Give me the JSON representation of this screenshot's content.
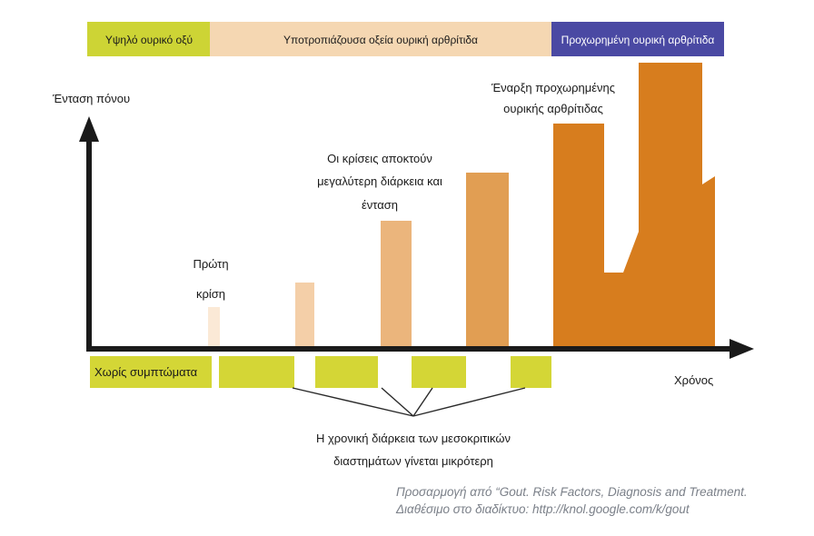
{
  "stages": [
    {
      "label": "Υψηλό ουρικό οξύ",
      "color": "#cdd435"
    },
    {
      "label": "Υποτροπιάζουσα οξεία ουρική αρθρίτιδα",
      "color": "#f5d7b2"
    },
    {
      "label": "Προχωρημένη ουρική αρθρίτιδα",
      "color": "#4a49a3"
    }
  ],
  "axes": {
    "y_label": "Ένταση πόνου",
    "x_label": "Χρόνος"
  },
  "annotations": {
    "first_attack": [
      "Πρώτη",
      "κρίση"
    ],
    "longer_attacks": [
      "Οι κρίσεις αποκτούν",
      "μεγαλύτερη διάρκεια και",
      "ένταση"
    ],
    "advanced_onset": [
      "Έναρξη προχωρημένης",
      "ουρικής αρθρίτιδας"
    ],
    "no_symptoms": "Χωρίς συμπτώματα",
    "intervals": [
      "Η χρονική διάρκεια των μεσοκριτικών",
      "διαστημάτων γίνεται μικρότερη"
    ]
  },
  "credit": [
    "Προσαρμογή από “Gout. Risk Factors, Diagnosis and Treatment.",
    "Διαθέσιμο στο διαδίκτυο: http://knol.google.com/k/gout"
  ],
  "colors": {
    "attack_1": "#fbe9d6",
    "attack_2": "#f4cfa8",
    "attack_3": "#ebb57c",
    "attack_4": "#e19e53",
    "advanced": "#d77d1e",
    "interval": "#d4d636",
    "axis": "#1a1a1a"
  }
}
